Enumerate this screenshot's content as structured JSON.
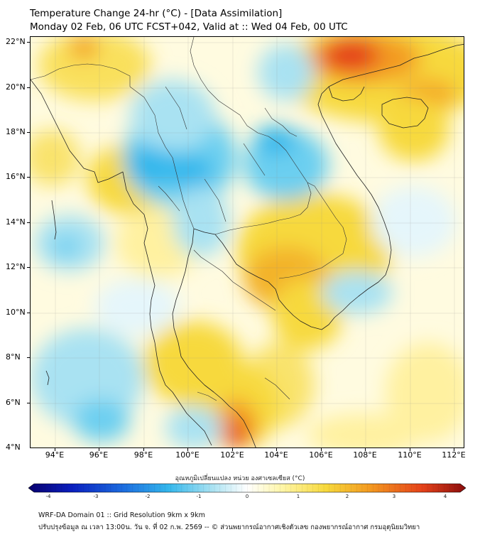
{
  "header": {
    "title_line1": "Temperature Change 24-hr (°C) - [Data Assimilation]",
    "title_line2": "Monday 02 Feb, 06 UTC FCST+042, Valid at :: Wed 04 Feb, 00 UTC"
  },
  "map": {
    "lat_labels": [
      "22°N",
      "20°N",
      "18°N",
      "16°N",
      "14°N",
      "12°N",
      "10°N",
      "8°N",
      "6°N",
      "4°N"
    ],
    "lon_labels": [
      "94°E",
      "96°E",
      "98°E",
      "100°E",
      "102°E",
      "104°E",
      "106°E",
      "108°E",
      "110°E",
      "112°E"
    ],
    "lat_range": [
      4,
      22.3
    ],
    "lon_range": [
      93,
      112.6
    ]
  },
  "colorbar": {
    "title": "อุณหภูมิเปลี่ยนแปลง หน่วย องศาเซลเซียส (°C)",
    "ticks": [
      "-4",
      "-3",
      "-2",
      "-1",
      "0",
      "1",
      "2",
      "3",
      "4"
    ],
    "range": [
      -4,
      4
    ],
    "colors": [
      "#08006e",
      "#0a1fbf",
      "#1d6fe0",
      "#33b7ec",
      "#a9e2f2",
      "#ffffff",
      "#fff6a8",
      "#f7d93c",
      "#f39a20",
      "#e5421a",
      "#8a0c0c"
    ]
  },
  "footer": {
    "line1": "WRF-DA Domain 01 :: Grid Resolution 9km x 9km",
    "line2": "ปรับปรุงข้อมูล ณ เวลา 13:00น. วัน จ. ที่ 02 ก.พ. 2569 -- © ส่วนพยากรณ์อากาศเชิงตัวเลข กองพยากรณ์อากาศ กรมอุตุนิยมวิทยา"
  }
}
